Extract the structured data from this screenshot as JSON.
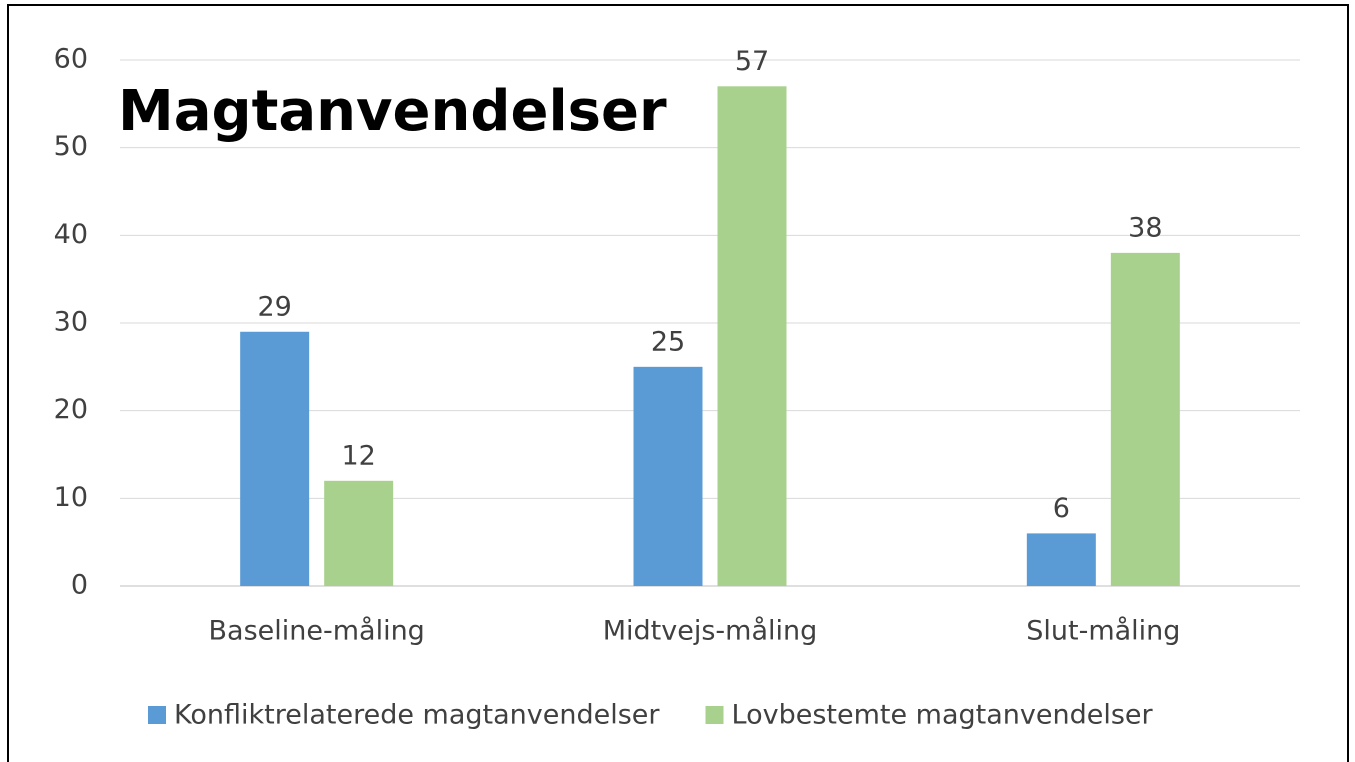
{
  "chart_data": {
    "type": "bar",
    "title": "Magtanvendelser",
    "categories": [
      "Baseline-måling",
      "Midtvejs-måling",
      "Slut-måling"
    ],
    "series": [
      {
        "name": "Konfliktrelaterede magtanvendelser",
        "color": "#5b9bd5",
        "values": [
          29,
          25,
          6
        ]
      },
      {
        "name": "Lovbestemte magtanvendelser",
        "color": "#a9d18e",
        "values": [
          12,
          57,
          38
        ]
      }
    ],
    "ylim": [
      0,
      60
    ],
    "yticks": [
      0,
      10,
      20,
      30,
      40,
      50,
      60
    ],
    "grid": true,
    "legend": "bottom"
  }
}
